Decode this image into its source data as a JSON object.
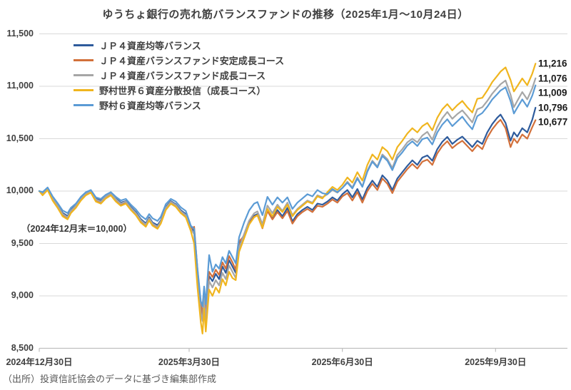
{
  "title": "ゆうちょ銀行の売れ筋バランスファンドの推移（2025年1月～10月24日）",
  "annotation": "（2024年12月末＝10,000）",
  "source_note": "（出所）投資信託協会のデータに基づき編集部作成",
  "colors": {
    "grid": "#d9d9d9",
    "axis": "#bfbfbf",
    "text": "#404040",
    "series_dark_blue": "#2e5b9c",
    "series_orange": "#d2703a",
    "series_gray": "#a6a6a6",
    "series_yellow": "#f0b51e",
    "series_light_blue": "#5b9bd5"
  },
  "chart_data": {
    "type": "line",
    "title": "ゆうちょ銀行の売れ筋バランスファンドの推移（2025年1月～10月24日）",
    "x_unit": "days since 2024-12-30",
    "xlim": [
      0,
      298
    ],
    "ylim": [
      8500,
      11500
    ],
    "grid": "horizontal",
    "legend_position": "top-left-vertical",
    "base_note": "2024年12月末＝10,000",
    "x_ticks": [
      {
        "day": 0,
        "label": "2024年12月30日"
      },
      {
        "day": 90,
        "label": "2025年3月30日"
      },
      {
        "day": 182,
        "label": "2025年6月30日"
      },
      {
        "day": 274,
        "label": "2025年9月30日"
      }
    ],
    "y_ticks": [
      {
        "value": 11500,
        "label": "11,500"
      },
      {
        "value": 11000,
        "label": "11,000"
      },
      {
        "value": 10500,
        "label": "10,500"
      },
      {
        "value": 10000,
        "label": "10,000"
      },
      {
        "value": 9500,
        "label": "9,500"
      },
      {
        "value": 9000,
        "label": "9,000"
      },
      {
        "value": 8500,
        "label": "8,500"
      }
    ],
    "days": [
      0,
      2,
      5,
      8,
      11,
      14,
      17,
      19,
      22,
      25,
      28,
      31,
      34,
      37,
      40,
      43,
      46,
      49,
      52,
      55,
      58,
      61,
      64,
      66,
      68,
      71,
      73,
      76,
      79,
      82,
      85,
      88,
      91,
      93,
      95,
      97,
      98,
      99,
      100,
      102,
      104,
      106,
      108,
      110,
      112,
      114,
      116,
      118,
      120,
      123,
      126,
      129,
      131,
      134,
      137,
      140,
      143,
      146,
      149,
      152,
      155,
      158,
      161,
      164,
      167,
      170,
      173,
      176,
      179,
      182,
      185,
      188,
      191,
      194,
      197,
      200,
      203,
      206,
      209,
      212,
      215,
      218,
      221,
      224,
      227,
      230,
      233,
      236,
      239,
      242,
      245,
      248,
      251,
      254,
      257,
      260,
      263,
      266,
      269,
      272,
      275,
      277,
      280,
      283,
      285,
      287,
      290,
      293,
      296,
      298
    ],
    "series": [
      {
        "name": "ＪＰ４資産均等バランス",
        "color": "#2e5b9c",
        "end_value": 10796,
        "end_label": "10,796",
        "values": [
          10000,
          9978,
          10022,
          9935,
          9868,
          9792,
          9762,
          9818,
          9868,
          9935,
          9982,
          10005,
          9928,
          9908,
          9952,
          9982,
          9928,
          9890,
          9905,
          9848,
          9800,
          9732,
          9692,
          9750,
          9700,
          9675,
          9720,
          9848,
          9905,
          9875,
          9818,
          9780,
          9650,
          9620,
          9200,
          8880,
          8800,
          9010,
          8820,
          9190,
          9140,
          9210,
          9160,
          9280,
          9220,
          9340,
          9280,
          9220,
          9500,
          9580,
          9700,
          9765,
          9780,
          9655,
          9825,
          9748,
          9820,
          9760,
          9840,
          9710,
          9780,
          9820,
          9850,
          9820,
          9880,
          9870,
          9900,
          9940,
          9910,
          9970,
          10010,
          9940,
          10020,
          9920,
          10030,
          10100,
          10040,
          10150,
          10100,
          10010,
          10120,
          10180,
          10240,
          10293,
          10250,
          10320,
          10340,
          10290,
          10400,
          10470,
          10517,
          10450,
          10490,
          10520,
          10470,
          10420,
          10480,
          10450,
          10560,
          10640,
          10700,
          10730,
          10650,
          10480,
          10560,
          10520,
          10600,
          10560,
          10680,
          10796
        ]
      },
      {
        "name": "ＪＰ４資産バランスファンド安定成長コース",
        "color": "#d2703a",
        "end_value": 10677,
        "end_label": "10,677",
        "values": [
          10000,
          9968,
          10015,
          9918,
          9848,
          9768,
          9740,
          9798,
          9848,
          9918,
          9968,
          9992,
          9908,
          9888,
          9938,
          9968,
          9908,
          9868,
          9888,
          9828,
          9778,
          9708,
          9668,
          9728,
          9678,
          9650,
          9698,
          9828,
          9888,
          9858,
          9798,
          9758,
          9630,
          9660,
          9250,
          8920,
          8820,
          9040,
          8840,
          9230,
          9180,
          9250,
          9200,
          9320,
          9260,
          9380,
          9320,
          9250,
          9520,
          9570,
          9690,
          9755,
          9770,
          9645,
          9810,
          9730,
          9800,
          9740,
          9810,
          9690,
          9760,
          9800,
          9830,
          9800,
          9860,
          9850,
          9880,
          9920,
          9890,
          9950,
          9980,
          9910,
          9990,
          9890,
          10000,
          10070,
          10010,
          10120,
          10070,
          9980,
          10090,
          10150,
          10210,
          10259,
          10215,
          10280,
          10300,
          10250,
          10360,
          10430,
          10476,
          10410,
          10450,
          10480,
          10430,
          10380,
          10440,
          10400,
          10510,
          10590,
          10650,
          10680,
          10600,
          10420,
          10500,
          10460,
          10540,
          10500,
          10610,
          10677
        ]
      },
      {
        "name": "ＪＰ４資産バランスファンド成長コース",
        "color": "#a6a6a6",
        "end_value": 11076,
        "end_label": "11,076",
        "values": [
          10000,
          9980,
          10028,
          9932,
          9860,
          9782,
          9750,
          9812,
          9860,
          9930,
          9978,
          10000,
          9920,
          9900,
          9948,
          9978,
          9922,
          9880,
          9900,
          9840,
          9790,
          9722,
          9680,
          9740,
          9690,
          9660,
          9710,
          9840,
          9898,
          9868,
          9808,
          9770,
          9640,
          9590,
          9170,
          8840,
          8760,
          8980,
          8770,
          9140,
          9080,
          9150,
          9100,
          9220,
          9160,
          9290,
          9230,
          9170,
          9460,
          9590,
          9718,
          9788,
          9806,
          9684,
          9862,
          9790,
          9870,
          9810,
          9890,
          9770,
          9830,
          9870,
          9910,
          9890,
          9960,
          9940,
          9970,
          10010,
          9985,
          10030,
          10090,
          10035,
          10130,
          10045,
          10195,
          10290,
          10235,
          10350,
          10305,
          10220,
          10345,
          10400,
          10465,
          10500,
          10465,
          10530,
          10565,
          10490,
          10610,
          10695,
          10755,
          10690,
          10735,
          10770,
          10715,
          10655,
          10780,
          10800,
          10860,
          10930,
          10985,
          11020,
          11055,
          10920,
          10800,
          10860,
          10945,
          10875,
          10980,
          11076
        ]
      },
      {
        "name": "野村世界６資産分散投信（成長コース）",
        "color": "#f0b51e",
        "end_value": 11216,
        "end_label": "11,216",
        "values": [
          10000,
          9960,
          10010,
          9910,
          9840,
          9760,
          9730,
          9790,
          9840,
          9910,
          9960,
          9985,
          9900,
          9880,
          9930,
          9960,
          9900,
          9860,
          9880,
          9820,
          9770,
          9700,
          9660,
          9720,
          9670,
          9640,
          9690,
          9820,
          9880,
          9850,
          9790,
          9750,
          9620,
          9500,
          9080,
          8750,
          8640,
          8880,
          8660,
          9060,
          9000,
          9080,
          9030,
          9160,
          9100,
          9230,
          9170,
          9150,
          9420,
          9550,
          9680,
          9750,
          9770,
          9650,
          9830,
          9760,
          9850,
          9800,
          9870,
          9760,
          9820,
          9860,
          9900,
          9880,
          9950,
          9930,
          9990,
          10040,
          10010,
          10060,
          10130,
          10080,
          10180,
          10100,
          10250,
          10350,
          10300,
          10420,
          10380,
          10300,
          10420,
          10480,
          10550,
          10600,
          10560,
          10620,
          10650,
          10580,
          10700,
          10780,
          10830,
          10770,
          10820,
          10860,
          10800,
          10750,
          10880,
          10890,
          10960,
          11040,
          11100,
          11140,
          11180,
          11060,
          10950,
          11000,
          11075,
          11010,
          11120,
          11216
        ]
      },
      {
        "name": "野村６資産均等バランス",
        "color": "#5b9bd5",
        "end_value": 11009,
        "end_label": "11,009",
        "values": [
          10000,
          9990,
          10035,
          9950,
          9885,
          9815,
          9790,
          9840,
          9880,
          9945,
          9990,
          10010,
          9940,
          9925,
          9965,
          9990,
          9945,
          9910,
          9925,
          9870,
          9825,
          9765,
          9730,
          9780,
          9740,
          9715,
          9755,
          9875,
          9925,
          9900,
          9845,
          9810,
          9670,
          9640,
          9260,
          8950,
          8900,
          9090,
          8920,
          9390,
          9230,
          9300,
          9260,
          9370,
          9310,
          9430,
          9370,
          9310,
          9560,
          9700,
          9815,
          9880,
          9895,
          9770,
          9945,
          9870,
          9940,
          9890,
          9940,
          9830,
          9890,
          9930,
          9970,
          9950,
          10010,
          9980,
          9970,
          10020,
          9990,
          10030,
          10080,
          10025,
          10120,
          10040,
          10185,
          10280,
          10225,
          10335,
          10290,
          10200,
          10315,
          10370,
          10435,
          10475,
          10430,
          10495,
          10510,
          10445,
          10560,
          10635,
          10685,
          10620,
          10665,
          10710,
          10645,
          10590,
          10715,
          10745,
          10805,
          10875,
          10925,
          10960,
          10990,
          10860,
          10740,
          10795,
          10875,
          10805,
          10910,
          11009
        ]
      }
    ]
  }
}
